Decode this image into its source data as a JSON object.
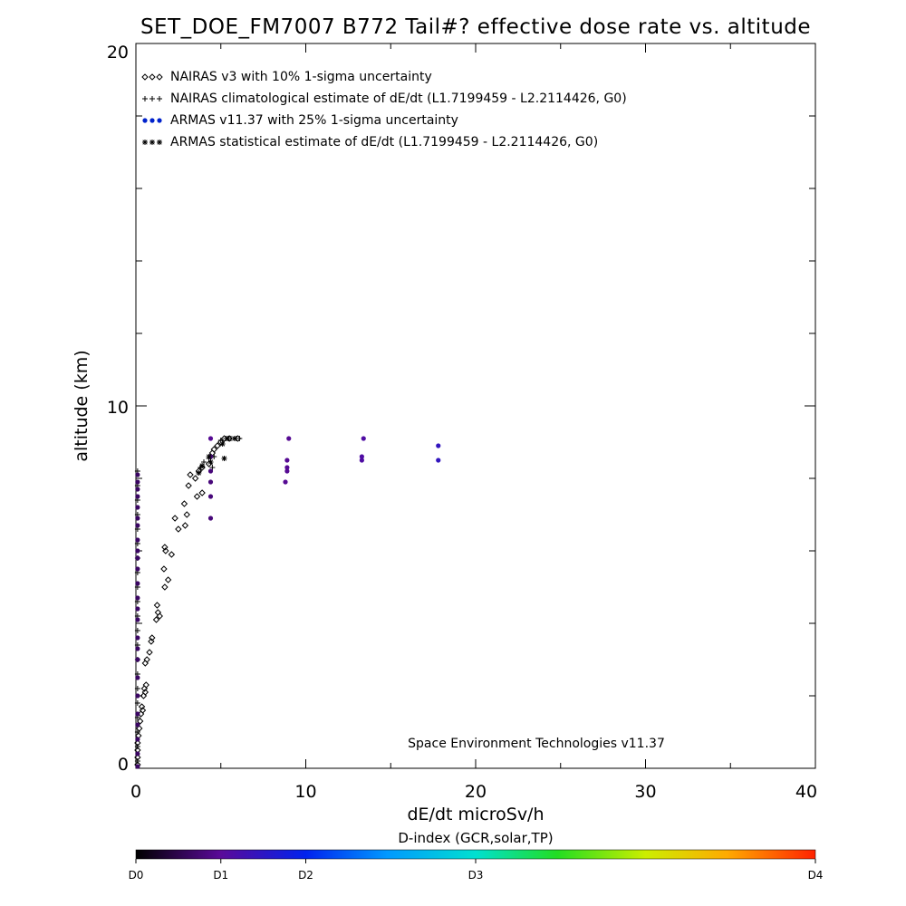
{
  "chart_data": {
    "type": "scatter",
    "title": "SET_DOE_FM7007  B772 Tail#? effective dose rate vs. altitude",
    "xlabel": "dE/dt microSv/h",
    "ylabel": "altitude (km)",
    "xlim": [
      0,
      40
    ],
    "ylim": [
      0,
      20
    ],
    "x_ticks": [
      "0",
      "10",
      "20",
      "30",
      "40"
    ],
    "y_ticks": [
      "0",
      "10",
      "20"
    ],
    "legend_position": "top-left",
    "credit": "Space Environment Technologies v11.37",
    "legend": [
      {
        "name": "NAIRAS v3 with 10% 1-sigma uncertainty",
        "marker": "diamond",
        "color": "#000000"
      },
      {
        "name": "NAIRAS climatological estimate of dE/dt (L1.7199459 - L2.2114426, G0)",
        "marker": "plus",
        "color": "#000000"
      },
      {
        "name": "ARMAS v11.37 with 25% 1-sigma uncertainty",
        "marker": "dot",
        "color": "#0022cc"
      },
      {
        "name": "ARMAS statistical estimate of dE/dt (L1.7199459 - L2.2114426, G0)",
        "marker": "asterisk",
        "color": "#000000"
      }
    ],
    "colorbar": {
      "title": "D-index (GCR,solar,TP)",
      "labels": [
        {
          "text": "D0",
          "value": 0
        },
        {
          "text": "D1",
          "value": 0.125
        },
        {
          "text": "D2",
          "value": 0.25
        },
        {
          "text": "D3",
          "value": 0.5
        },
        {
          "text": "D4",
          "value": 1.0
        }
      ]
    },
    "series": [
      {
        "name": "NAIRAS v3 with 10% 1-sigma uncertainty",
        "marker": "diamond",
        "points": [
          [
            0.1,
            0.1
          ],
          [
            0.1,
            0.3
          ],
          [
            0.1,
            0.5
          ],
          [
            0.1,
            0.7
          ],
          [
            0.15,
            0.9
          ],
          [
            0.2,
            1.1
          ],
          [
            0.25,
            1.3
          ],
          [
            0.3,
            1.5
          ],
          [
            0.35,
            1.7
          ],
          [
            0.4,
            1.6
          ],
          [
            0.45,
            2.0
          ],
          [
            0.5,
            2.2
          ],
          [
            0.55,
            2.1
          ],
          [
            0.6,
            2.3
          ],
          [
            0.55,
            2.9
          ],
          [
            0.65,
            3.0
          ],
          [
            0.8,
            3.2
          ],
          [
            0.9,
            3.5
          ],
          [
            0.95,
            3.6
          ],
          [
            1.2,
            4.1
          ],
          [
            1.3,
            4.3
          ],
          [
            1.4,
            4.2
          ],
          [
            1.25,
            4.5
          ],
          [
            1.7,
            5.0
          ],
          [
            1.9,
            5.2
          ],
          [
            1.65,
            5.5
          ],
          [
            2.1,
            5.9
          ],
          [
            1.75,
            6.0
          ],
          [
            1.7,
            6.1
          ],
          [
            2.5,
            6.6
          ],
          [
            2.9,
            6.7
          ],
          [
            2.3,
            6.9
          ],
          [
            3.0,
            7.0
          ],
          [
            2.85,
            7.3
          ],
          [
            3.6,
            7.5
          ],
          [
            3.9,
            7.6
          ],
          [
            3.1,
            7.8
          ],
          [
            3.5,
            8.0
          ],
          [
            3.2,
            8.1
          ],
          [
            3.7,
            8.2
          ],
          [
            3.9,
            8.3
          ],
          [
            4.3,
            8.4
          ],
          [
            4.4,
            8.6
          ],
          [
            4.5,
            8.7
          ],
          [
            4.6,
            8.8
          ],
          [
            4.8,
            8.9
          ],
          [
            5.0,
            9.0
          ],
          [
            5.2,
            9.1
          ],
          [
            5.5,
            9.1
          ],
          [
            6.0,
            9.1
          ]
        ]
      },
      {
        "name": "NAIRAS climatological estimate of dE/dt (L1.7199459 - L2.2114426, G0)",
        "marker": "plus",
        "points": [
          [
            0.1,
            0.2
          ],
          [
            0.1,
            0.6
          ],
          [
            0.1,
            1.0
          ],
          [
            0.1,
            1.4
          ],
          [
            0.1,
            1.8
          ],
          [
            0.1,
            2.2
          ],
          [
            0.1,
            2.6
          ],
          [
            0.1,
            3.0
          ],
          [
            0.1,
            3.4
          ],
          [
            0.1,
            3.8
          ],
          [
            0.1,
            4.2
          ],
          [
            0.1,
            4.6
          ],
          [
            0.1,
            5.0
          ],
          [
            0.1,
            5.4
          ],
          [
            0.1,
            5.8
          ],
          [
            0.1,
            6.2
          ],
          [
            0.1,
            6.6
          ],
          [
            0.1,
            7.0
          ],
          [
            0.1,
            7.4
          ],
          [
            0.1,
            7.8
          ],
          [
            0.1,
            8.2
          ],
          [
            3.8,
            8.3
          ],
          [
            4.0,
            8.45
          ],
          [
            4.3,
            8.55
          ],
          [
            4.5,
            8.3
          ],
          [
            4.6,
            8.6
          ],
          [
            5.0,
            9.05
          ],
          [
            5.3,
            9.1
          ],
          [
            5.6,
            9.1
          ],
          [
            5.9,
            9.1
          ],
          [
            6.1,
            9.1
          ]
        ]
      },
      {
        "name": "ARMAS v11.37 with 25% 1-sigma uncertainty",
        "marker": "dot",
        "points": [
          [
            0.1,
            0.05,
            0.08
          ],
          [
            0.1,
            0.4,
            0.08
          ],
          [
            0.1,
            0.8,
            0.08
          ],
          [
            0.1,
            1.2,
            0.08
          ],
          [
            0.1,
            1.5,
            0.08
          ],
          [
            0.1,
            2.0,
            0.08
          ],
          [
            0.1,
            2.5,
            0.08
          ],
          [
            0.1,
            3.0,
            0.08
          ],
          [
            0.1,
            3.3,
            0.08
          ],
          [
            0.1,
            3.6,
            0.08
          ],
          [
            0.1,
            4.1,
            0.08
          ],
          [
            0.1,
            4.4,
            0.08
          ],
          [
            0.1,
            4.7,
            0.08
          ],
          [
            0.1,
            5.1,
            0.08
          ],
          [
            0.1,
            5.5,
            0.08
          ],
          [
            0.1,
            5.8,
            0.08
          ],
          [
            0.1,
            6.0,
            0.08
          ],
          [
            0.1,
            6.3,
            0.08
          ],
          [
            0.1,
            6.7,
            0.08
          ],
          [
            0.1,
            6.9,
            0.08
          ],
          [
            0.1,
            7.2,
            0.08
          ],
          [
            0.1,
            7.5,
            0.08
          ],
          [
            0.1,
            7.7,
            0.08
          ],
          [
            0.1,
            7.9,
            0.08
          ],
          [
            0.1,
            8.1,
            0.08
          ],
          [
            4.4,
            6.9,
            0.1
          ],
          [
            4.4,
            7.5,
            0.1
          ],
          [
            4.4,
            7.9,
            0.1
          ],
          [
            4.4,
            8.2,
            0.1
          ],
          [
            4.4,
            8.6,
            0.1
          ],
          [
            4.4,
            9.1,
            0.12
          ],
          [
            8.8,
            7.9,
            0.12
          ],
          [
            8.9,
            8.2,
            0.12
          ],
          [
            8.9,
            8.3,
            0.12
          ],
          [
            8.9,
            8.5,
            0.12
          ],
          [
            9.0,
            9.1,
            0.12
          ],
          [
            13.3,
            8.5,
            0.14
          ],
          [
            13.3,
            8.6,
            0.14
          ],
          [
            13.4,
            9.1,
            0.14
          ],
          [
            17.8,
            8.5,
            0.18
          ],
          [
            17.8,
            8.9,
            0.18
          ]
        ]
      },
      {
        "name": "ARMAS statistical estimate of dE/dt (L1.7199459 - L2.2114426, G0)",
        "marker": "asterisk",
        "points": [
          [
            3.7,
            8.15
          ],
          [
            3.9,
            8.35
          ],
          [
            4.3,
            8.6
          ],
          [
            4.4,
            8.45
          ],
          [
            5.2,
            8.55
          ],
          [
            5.1,
            8.95
          ],
          [
            5.4,
            9.1
          ],
          [
            5.8,
            9.1
          ]
        ]
      }
    ]
  }
}
